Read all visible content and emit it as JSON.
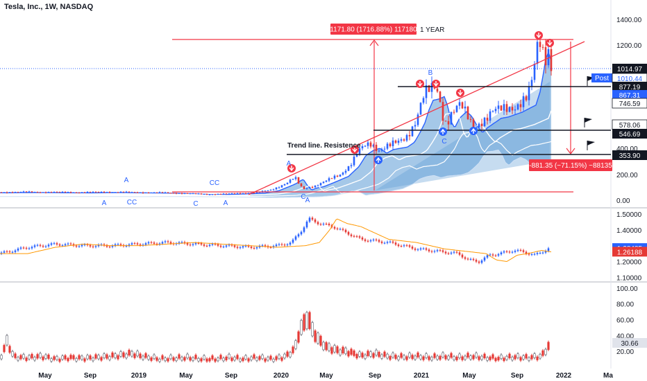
{
  "header": {
    "title": "Tesla, Inc., 1W, NASDAQ"
  },
  "colors": {
    "up": "#2962ff",
    "down": "#e53935",
    "annotation": "#f23645",
    "fill": "#5b9bd5",
    "dark": "#131722"
  },
  "chart_data": [
    {
      "type": "candlestick",
      "panel": "price",
      "title": "Tesla, Inc., 1W, NASDAQ",
      "y_ticks": [
        "1400.00",
        "1200.00",
        "400.00",
        "200.00",
        "0.00"
      ],
      "ylim": [
        -10,
        1460
      ],
      "x_ticks": [
        "May",
        "Sep",
        "2019",
        "May",
        "Sep",
        "2020",
        "May",
        "Sep",
        "2021",
        "May",
        "Sep",
        "2022",
        "Ma"
      ],
      "price_path": [
        [
          0,
          62
        ],
        [
          30,
          64
        ],
        [
          60,
          63
        ],
        [
          90,
          62
        ],
        [
          120,
          61
        ],
        [
          150,
          64
        ],
        [
          180,
          62
        ],
        [
          210,
          60
        ],
        [
          240,
          58
        ],
        [
          270,
          52
        ],
        [
          300,
          46
        ],
        [
          330,
          50
        ],
        [
          350,
          55
        ],
        [
          370,
          60
        ],
        [
          390,
          80
        ],
        [
          405,
          115
        ],
        [
          415,
          140
        ],
        [
          420,
          160
        ],
        [
          425,
          175
        ],
        [
          430,
          130
        ],
        [
          437,
          85
        ],
        [
          443,
          100
        ],
        [
          455,
          115
        ],
        [
          470,
          150
        ],
        [
          490,
          200
        ],
        [
          505,
          280
        ],
        [
          515,
          370
        ],
        [
          525,
          410
        ],
        [
          535,
          430
        ],
        [
          545,
          390
        ],
        [
          555,
          420
        ],
        [
          565,
          430
        ],
        [
          575,
          440
        ],
        [
          585,
          480
        ],
        [
          593,
          560
        ],
        [
          600,
          640
        ],
        [
          606,
          750
        ],
        [
          612,
          830
        ],
        [
          620,
          840
        ],
        [
          628,
          860
        ],
        [
          633,
          780
        ],
        [
          638,
          650
        ],
        [
          643,
          600
        ],
        [
          650,
          680
        ],
        [
          660,
          735
        ],
        [
          667,
          700
        ],
        [
          675,
          620
        ],
        [
          683,
          560
        ],
        [
          690,
          600
        ],
        [
          700,
          640
        ],
        [
          710,
          680
        ],
        [
          720,
          690
        ],
        [
          730,
          710
        ],
        [
          740,
          730
        ],
        [
          750,
          760
        ],
        [
          760,
          790
        ],
        [
          766,
          900
        ],
        [
          770,
          1030
        ],
        [
          774,
          1170
        ],
        [
          778,
          1230
        ],
        [
          782,
          1160
        ],
        [
          786,
          1120
        ],
        [
          790,
          1190
        ],
        [
          794,
          1040
        ]
      ],
      "indicators": [
        "moving-average-fast",
        "moving-average-mid",
        "moving-average-slow",
        "moving-average-long"
      ],
      "price_tags": {
        "last": "1014.97",
        "post_label": "Post",
        "post": "1010.44",
        "levels": [
          "877.19",
          "867.31",
          "746.59",
          "578.06",
          "546.69",
          "353.90"
        ]
      },
      "annotations": {
        "range_up": "1171.80 (1716.88%) 117180",
        "period": "1 YEAR",
        "range_down": "-881.35 (−71.15%) −88135",
        "trend_label": "Trend line. Resistence",
        "letters": [
          "B",
          "C",
          "A",
          "A",
          "C",
          "CC",
          "CC",
          "A",
          "A",
          "A",
          "C"
        ]
      }
    },
    {
      "type": "line",
      "panel": "ratio",
      "y_ticks": [
        "1.50000",
        "1.40000",
        "1.20000",
        "1.10000"
      ],
      "ylim": [
        1.08,
        1.53
      ],
      "path": [
        [
          0,
          1.25
        ],
        [
          40,
          1.29
        ],
        [
          80,
          1.31
        ],
        [
          120,
          1.3
        ],
        [
          160,
          1.3
        ],
        [
          200,
          1.31
        ],
        [
          240,
          1.32
        ],
        [
          280,
          1.31
        ],
        [
          320,
          1.3
        ],
        [
          360,
          1.29
        ],
        [
          400,
          1.3
        ],
        [
          420,
          1.32
        ],
        [
          435,
          1.4
        ],
        [
          445,
          1.47
        ],
        [
          460,
          1.44
        ],
        [
          480,
          1.42
        ],
        [
          500,
          1.38
        ],
        [
          520,
          1.34
        ],
        [
          540,
          1.33
        ],
        [
          560,
          1.32
        ],
        [
          580,
          1.3
        ],
        [
          600,
          1.28
        ],
        [
          620,
          1.27
        ],
        [
          640,
          1.26
        ],
        [
          660,
          1.25
        ],
        [
          675,
          1.21
        ],
        [
          690,
          1.2
        ],
        [
          705,
          1.24
        ],
        [
          720,
          1.25
        ],
        [
          740,
          1.27
        ],
        [
          755,
          1.26
        ],
        [
          770,
          1.24
        ],
        [
          780,
          1.26
        ],
        [
          792,
          1.285
        ]
      ],
      "tags": [
        "1.28485",
        "1.26188"
      ]
    },
    {
      "type": "bar",
      "panel": "volatility",
      "y_ticks": [
        "100.00",
        "80.00",
        "60.00",
        "40.00",
        "20.00"
      ],
      "ylim": [
        0,
        106
      ],
      "path": [
        [
          0,
          12
        ],
        [
          10,
          38
        ],
        [
          20,
          15
        ],
        [
          40,
          14
        ],
        [
          60,
          16
        ],
        [
          80,
          12
        ],
        [
          100,
          14
        ],
        [
          120,
          13
        ],
        [
          150,
          15
        ],
        [
          170,
          17
        ],
        [
          190,
          20
        ],
        [
          210,
          15
        ],
        [
          230,
          12
        ],
        [
          250,
          13
        ],
        [
          270,
          14
        ],
        [
          290,
          12
        ],
        [
          310,
          12
        ],
        [
          330,
          14
        ],
        [
          350,
          12
        ],
        [
          370,
          14
        ],
        [
          390,
          12
        ],
        [
          405,
          14
        ],
        [
          415,
          18
        ],
        [
          425,
          28
        ],
        [
          432,
          55
        ],
        [
          438,
          65
        ],
        [
          444,
          75
        ],
        [
          450,
          55
        ],
        [
          458,
          42
        ],
        [
          470,
          30
        ],
        [
          485,
          25
        ],
        [
          500,
          23
        ],
        [
          520,
          17
        ],
        [
          540,
          20
        ],
        [
          560,
          16
        ],
        [
          580,
          15
        ],
        [
          600,
          16
        ],
        [
          620,
          14
        ],
        [
          640,
          16
        ],
        [
          660,
          14
        ],
        [
          680,
          16
        ],
        [
          700,
          14
        ],
        [
          720,
          13
        ],
        [
          740,
          15
        ],
        [
          760,
          14
        ],
        [
          780,
          16
        ],
        [
          790,
          31
        ]
      ],
      "tag": "30.66"
    }
  ]
}
